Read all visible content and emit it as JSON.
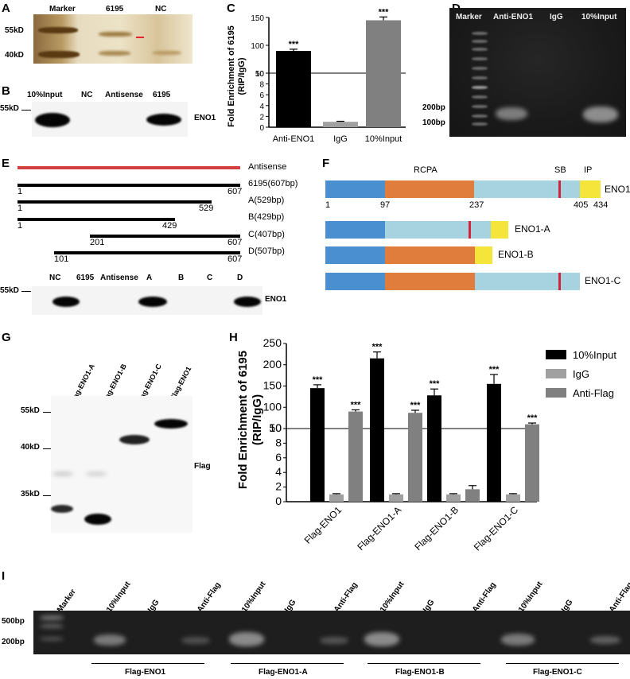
{
  "panels": {
    "A": "A",
    "B": "B",
    "C": "C",
    "D": "D",
    "E": "E",
    "F": "F",
    "G": "G",
    "H": "H",
    "I": "I"
  },
  "panelA": {
    "lanes": [
      "Marker",
      "6195",
      "NC"
    ],
    "sizes": [
      "55kD",
      "40kD"
    ]
  },
  "panelB": {
    "lanes": [
      "10%Input",
      "NC",
      "Antisense",
      "6195"
    ],
    "size": "55kD",
    "protein": "ENO1"
  },
  "panelC": {
    "chart_data": {
      "type": "bar",
      "categories": [
        "Anti-ENO1",
        "IgG",
        "10%Input"
      ],
      "values": [
        90,
        1.0,
        145
      ],
      "errors": [
        3,
        0.1,
        6
      ],
      "significance": [
        "***",
        "",
        "***"
      ],
      "ylabel": "Fold Enrichment of 6195 (RIP/IgG)",
      "ylim_lower": [
        0,
        10
      ],
      "ylim_upper": [
        50,
        150
      ],
      "yticks_lower": [
        "0",
        "2",
        "4",
        "6",
        "8",
        "10"
      ],
      "yticks_upper": [
        "50",
        "100",
        "150"
      ],
      "colors": [
        "#000000",
        "#a0a0a0",
        "#808080"
      ]
    }
  },
  "panelD": {
    "lanes": [
      "Marker",
      "Anti-ENO1",
      "IgG",
      "10%Input"
    ],
    "sizes": [
      "200bp",
      "100bp"
    ]
  },
  "panelE": {
    "constructs": [
      {
        "label": "Antisense"
      },
      {
        "label": "6195(607bp)",
        "start": "1",
        "end": "607"
      },
      {
        "label": "A(529bp)",
        "start": "1",
        "end": "529"
      },
      {
        "label": "B(429bp)",
        "start": "1",
        "end": "429"
      },
      {
        "label": "C(407bp)",
        "start": "201",
        "end": "607"
      },
      {
        "label": "D(507bp)",
        "start": "101",
        "end": "607"
      }
    ],
    "blot": {
      "lanes": [
        "NC",
        "6195",
        "Antisense",
        "A",
        "B",
        "C",
        "D"
      ],
      "size": "55kD",
      "protein": "ENO1"
    }
  },
  "panelF": {
    "domains": {
      "rcpa": "RCPA",
      "sb": "SB",
      "ip": "IP"
    },
    "positions": [
      "1",
      "97",
      "237",
      "405",
      "434"
    ],
    "constructs": [
      "ENO1",
      "ENO1-A",
      "ENO1-B",
      "ENO1-C"
    ],
    "colors": {
      "blue": "#4a90d0",
      "orange": "#e07c3c",
      "lightblue": "#a7d3e1",
      "yellow": "#f5e53b",
      "red": "#d0253a"
    }
  },
  "panelG": {
    "lanes": [
      "Flag-ENO1-A",
      "Flag-ENO1-B",
      "Flag-ENO1-C",
      "Flag-ENO1"
    ],
    "sizes": [
      "55kD",
      "40kD",
      "35kD"
    ],
    "protein": "Flag"
  },
  "panelH": {
    "chart_data": {
      "type": "bar",
      "categories": [
        "Flag-ENO1",
        "Flag-ENO1-A",
        "Flag-ENO1-B",
        "Flag-ENO1-C"
      ],
      "series": [
        {
          "name": "10%Input",
          "values": [
            145,
            215,
            128,
            155
          ],
          "errors": [
            8,
            15,
            15,
            22
          ],
          "color": "#000000",
          "sig": [
            "***",
            "***",
            "***",
            "***"
          ]
        },
        {
          "name": "IgG",
          "values": [
            1.0,
            1.0,
            1.0,
            1.0
          ],
          "errors": [
            0.1,
            0.1,
            0.1,
            0.1
          ],
          "color": "#a0a0a0",
          "sig": [
            "",
            "",
            "",
            ""
          ]
        },
        {
          "name": "Anti-Flag",
          "values": [
            90,
            87,
            1.7,
            60
          ],
          "errors": [
            4,
            6,
            0.5,
            3
          ],
          "color": "#808080",
          "sig": [
            "***",
            "***",
            "",
            "***"
          ]
        }
      ],
      "ylabel": "Fold Enrichment of 6195 (RIP/IgG)",
      "ylim_lower": [
        0,
        10
      ],
      "ylim_upper": [
        50,
        250
      ],
      "yticks_lower": [
        "0",
        "2",
        "4",
        "6",
        "8",
        "10"
      ],
      "yticks_upper": [
        "50",
        "100",
        "150",
        "200",
        "250"
      ]
    }
  },
  "panelI": {
    "lanes": [
      "Marker",
      "10%Input",
      "IgG",
      "Anti-Flag",
      "10%Input",
      "IgG",
      "Anti-Flag",
      "10%Input",
      "IgG",
      "Anti-Flag",
      "10%Input",
      "IgG",
      "Anti-Flag"
    ],
    "sizes": [
      "500bp",
      "200bp"
    ],
    "groups": [
      "Flag-ENO1",
      "Flag-ENO1-A",
      "Flag-ENO1-B",
      "Flag-ENO1-C"
    ]
  }
}
